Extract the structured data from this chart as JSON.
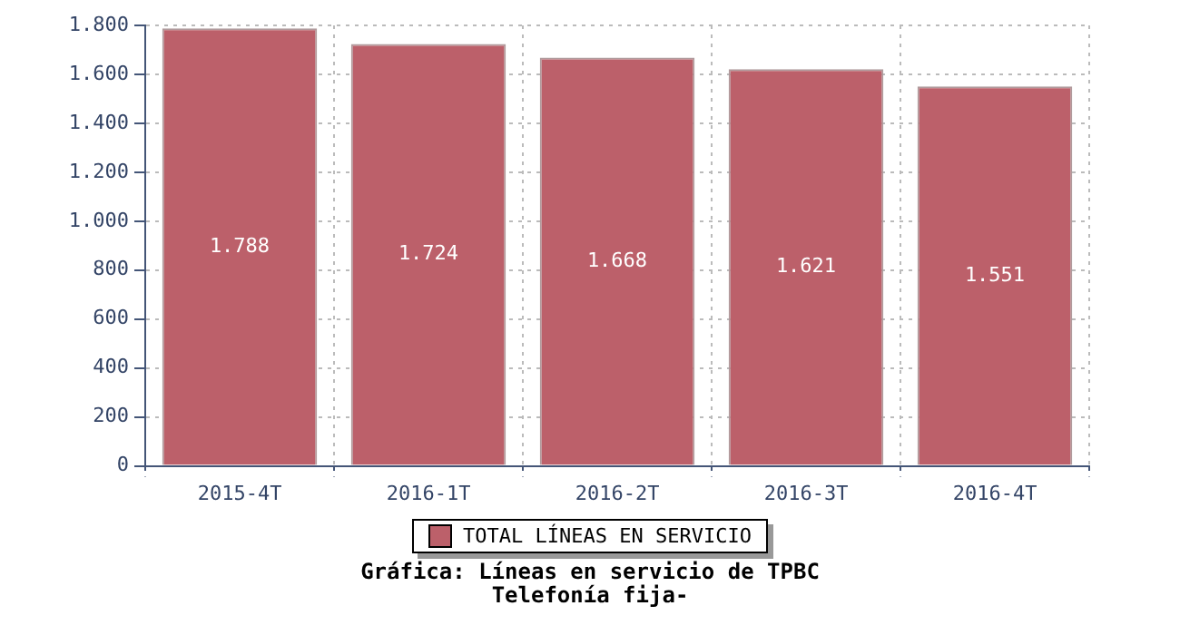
{
  "chart_data": {
    "type": "bar",
    "title": "Gráfica: Líneas en servicio de TPBC",
    "subtitle": "Telefonía fija-",
    "categories": [
      "2015-4T",
      "2016-1T",
      "2016-2T",
      "2016-3T",
      "2016-4T"
    ],
    "series": [
      {
        "name": "TOTAL LÍNEAS EN SERVICIO",
        "color": "#bc606a",
        "values": [
          1788,
          1724,
          1668,
          1621,
          1551
        ],
        "value_labels": [
          "1.788",
          "1.724",
          "1.668",
          "1.621",
          "1.551"
        ]
      }
    ],
    "ylim": [
      0,
      1800
    ],
    "yticks": [
      0,
      200,
      400,
      600,
      800,
      {
        "value": 1000,
        "label": "1.000"
      },
      {
        "value": 1200,
        "label": "1.200"
      },
      {
        "value": 1400,
        "label": "1.400"
      },
      {
        "value": 1600,
        "label": "1.600"
      },
      {
        "value": 1800,
        "label": "1.800"
      }
    ],
    "grid": true,
    "legend": "bottom"
  }
}
